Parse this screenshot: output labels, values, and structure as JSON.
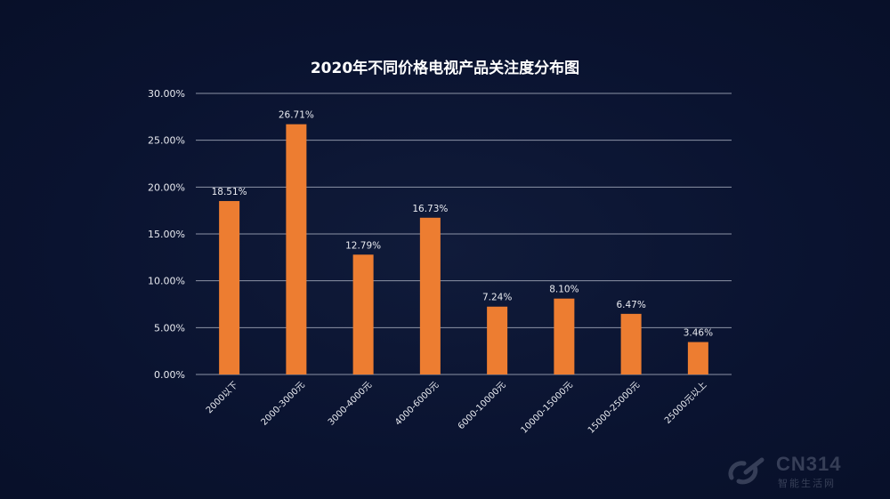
{
  "chart_data": {
    "type": "bar",
    "title": "2020年不同价格电视产品关注度分布图",
    "xlabel": "",
    "ylabel": "",
    "ylim": [
      0,
      30
    ],
    "yticks": [
      "0.00%",
      "5.00%",
      "10.00%",
      "15.00%",
      "20.00%",
      "25.00%",
      "30.00%"
    ],
    "ytick_values": [
      0,
      5,
      10,
      15,
      20,
      25,
      30
    ],
    "categories": [
      "2000以下",
      "2000-3000元",
      "3000-4000元",
      "4000-6000元",
      "6000-10000元",
      "10000-15000元",
      "15000-25000元",
      "25000元以上"
    ],
    "values": [
      18.51,
      26.71,
      12.79,
      16.73,
      7.24,
      8.1,
      6.47,
      3.46
    ],
    "data_labels": [
      "18.51%",
      "26.71%",
      "12.79%",
      "16.73%",
      "7.24%",
      "8.10%",
      "6.47%",
      "3.46%"
    ],
    "grid": true,
    "legend": "none",
    "colors": {
      "bar": "#ed7d31",
      "grid": "#8c93a6",
      "text": "#e8eaf0",
      "title": "#ffffff",
      "background": "#0b1530"
    }
  },
  "watermark": {
    "brand": "CN314",
    "sub": "智能生活网",
    "icon": "cn314-logo-icon"
  }
}
